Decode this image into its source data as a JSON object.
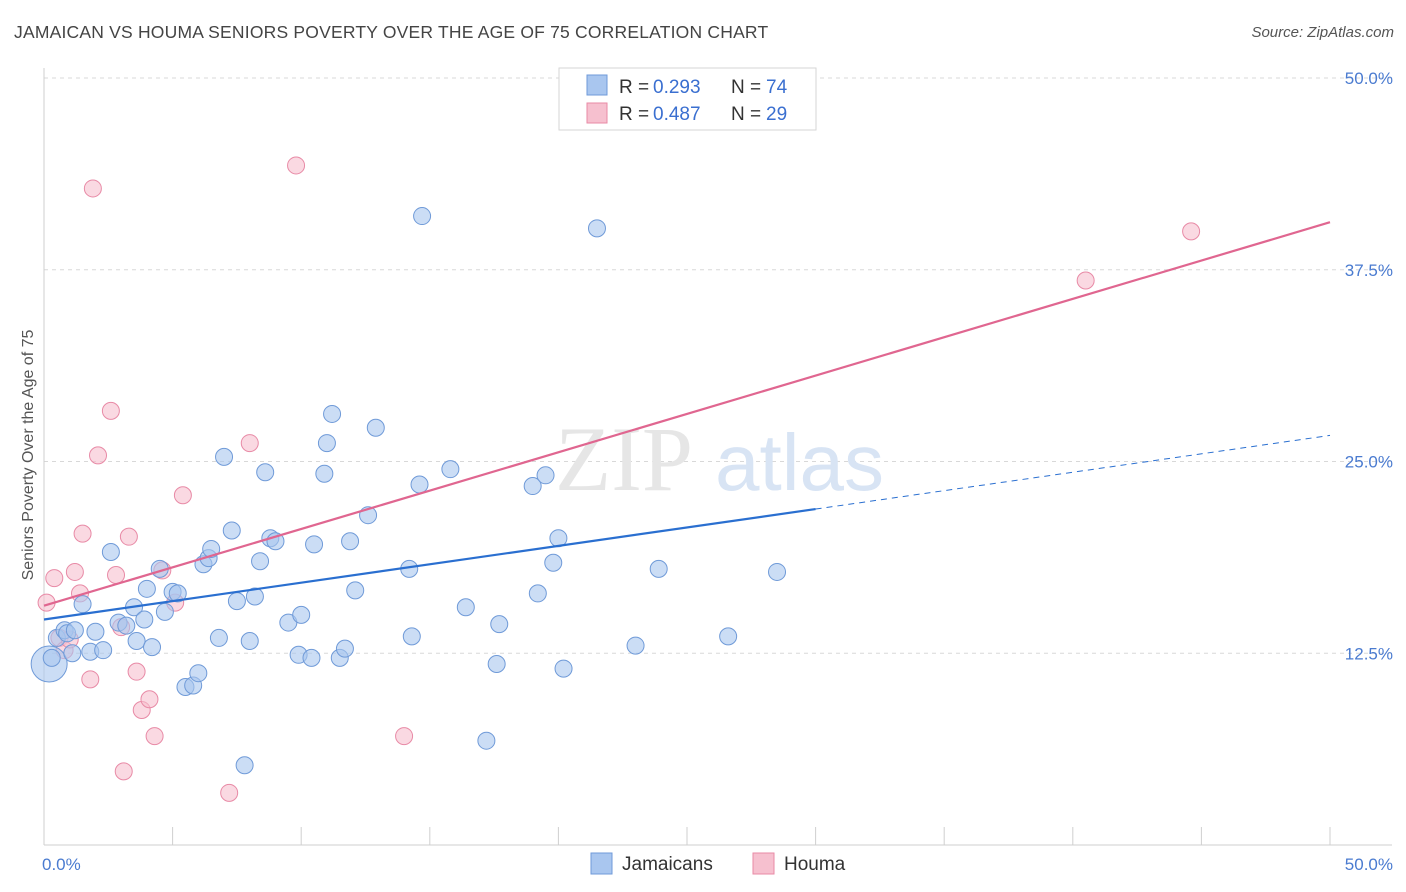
{
  "title": "JAMAICAN VS HOUMA SENIORS POVERTY OVER THE AGE OF 75 CORRELATION CHART",
  "source": "Source: ZipAtlas.com",
  "watermark": {
    "zip": "ZIP",
    "atlas": "atlas"
  },
  "colors": {
    "blue_fill": "#a9c6ef",
    "blue_stroke": "#6f9ad8",
    "blue_line": "#2a6fd0",
    "pink_fill": "#f6c0cf",
    "pink_stroke": "#e88aa6",
    "pink_line": "#e06690",
    "grid": "#d8d8d8",
    "tick_text": "#4a7bd0"
  },
  "legend": {
    "rows": [
      {
        "r_label": "R =",
        "r_value": "0.293",
        "n_label": "N =",
        "n_value": "74",
        "series": "blue"
      },
      {
        "r_label": "R =",
        "r_value": "0.487",
        "n_label": "N =",
        "n_value": "29",
        "series": "pink"
      }
    ]
  },
  "chart_data": {
    "type": "scatter",
    "title": "JAMAICAN VS HOUMA SENIORS POVERTY OVER THE AGE OF 75 CORRELATION CHART",
    "xlabel": "",
    "ylabel": "Seniors Poverty Over the Age of 75",
    "xlim": [
      0,
      50
    ],
    "ylim": [
      0,
      50
    ],
    "x_tick_labels": [
      "0.0%",
      "50.0%"
    ],
    "y_ticks": [
      12.5,
      25.0,
      37.5,
      50.0
    ],
    "y_tick_labels": [
      "12.5%",
      "25.0%",
      "37.5%",
      "50.0%"
    ],
    "grid": true,
    "legend_position": "top-center",
    "series": [
      {
        "name": "Jamaicans",
        "color": "#a9c6ef",
        "trend": {
          "x": [
            0,
            30
          ],
          "y": [
            14.7,
            21.9
          ],
          "dashed_to": [
            50,
            26.7
          ]
        },
        "points": [
          [
            0.2,
            11.8
          ],
          [
            0.3,
            12.2
          ],
          [
            0.5,
            13.5
          ],
          [
            0.8,
            14.0
          ],
          [
            0.9,
            13.8
          ],
          [
            1.1,
            12.5
          ],
          [
            1.2,
            14.0
          ],
          [
            1.5,
            15.7
          ],
          [
            1.8,
            12.6
          ],
          [
            2.0,
            13.9
          ],
          [
            2.3,
            12.7
          ],
          [
            2.6,
            19.1
          ],
          [
            2.9,
            14.5
          ],
          [
            3.2,
            14.3
          ],
          [
            3.5,
            15.5
          ],
          [
            3.6,
            13.3
          ],
          [
            3.9,
            14.7
          ],
          [
            4.0,
            16.7
          ],
          [
            4.2,
            12.9
          ],
          [
            4.5,
            18.0
          ],
          [
            4.7,
            15.2
          ],
          [
            5.0,
            16.5
          ],
          [
            5.2,
            16.4
          ],
          [
            5.5,
            10.3
          ],
          [
            5.8,
            10.4
          ],
          [
            6.0,
            11.2
          ],
          [
            6.2,
            18.3
          ],
          [
            6.4,
            18.7
          ],
          [
            6.5,
            19.3
          ],
          [
            6.8,
            13.5
          ],
          [
            7.0,
            25.3
          ],
          [
            7.3,
            20.5
          ],
          [
            7.5,
            15.9
          ],
          [
            7.8,
            5.2
          ],
          [
            8.0,
            13.3
          ],
          [
            8.2,
            16.2
          ],
          [
            8.4,
            18.5
          ],
          [
            8.6,
            24.3
          ],
          [
            8.8,
            20.0
          ],
          [
            9.0,
            19.8
          ],
          [
            9.5,
            14.5
          ],
          [
            9.9,
            12.4
          ],
          [
            10.0,
            15.0
          ],
          [
            10.4,
            12.2
          ],
          [
            10.5,
            19.6
          ],
          [
            10.9,
            24.2
          ],
          [
            11.0,
            26.2
          ],
          [
            11.2,
            28.1
          ],
          [
            11.5,
            12.2
          ],
          [
            11.7,
            12.8
          ],
          [
            11.9,
            19.8
          ],
          [
            12.1,
            16.6
          ],
          [
            12.6,
            21.5
          ],
          [
            12.9,
            27.2
          ],
          [
            14.3,
            13.6
          ],
          [
            14.2,
            18.0
          ],
          [
            14.6,
            23.5
          ],
          [
            14.7,
            41.0
          ],
          [
            15.8,
            24.5
          ],
          [
            16.4,
            15.5
          ],
          [
            17.2,
            6.8
          ],
          [
            17.6,
            11.8
          ],
          [
            17.7,
            14.4
          ],
          [
            19.0,
            23.4
          ],
          [
            19.2,
            16.4
          ],
          [
            19.5,
            24.1
          ],
          [
            19.8,
            18.4
          ],
          [
            20.0,
            20.0
          ],
          [
            20.2,
            11.5
          ],
          [
            21.5,
            40.2
          ],
          [
            23.0,
            13.0
          ],
          [
            23.9,
            18.0
          ],
          [
            26.6,
            13.6
          ],
          [
            28.5,
            17.8
          ]
        ]
      },
      {
        "name": "Houma",
        "color": "#f6c0cf",
        "trend": {
          "x": [
            0,
            50
          ],
          "y": [
            15.6,
            40.6
          ]
        },
        "points": [
          [
            0.1,
            15.8
          ],
          [
            0.4,
            17.4
          ],
          [
            0.6,
            13.5
          ],
          [
            0.8,
            12.7
          ],
          [
            1.0,
            13.4
          ],
          [
            1.2,
            17.8
          ],
          [
            1.4,
            16.4
          ],
          [
            1.5,
            20.3
          ],
          [
            1.8,
            10.8
          ],
          [
            1.9,
            42.8
          ],
          [
            2.1,
            25.4
          ],
          [
            2.6,
            28.3
          ],
          [
            2.8,
            17.6
          ],
          [
            3.0,
            14.2
          ],
          [
            3.1,
            4.8
          ],
          [
            3.3,
            20.1
          ],
          [
            3.6,
            11.3
          ],
          [
            3.8,
            8.8
          ],
          [
            4.1,
            9.5
          ],
          [
            4.3,
            7.1
          ],
          [
            4.6,
            17.9
          ],
          [
            5.1,
            15.8
          ],
          [
            5.4,
            22.8
          ],
          [
            7.2,
            3.4
          ],
          [
            8.0,
            26.2
          ],
          [
            9.8,
            44.3
          ],
          [
            14.0,
            7.1
          ],
          [
            40.5,
            36.8
          ],
          [
            44.6,
            40.0
          ]
        ]
      }
    ]
  },
  "bottom_legend": {
    "items": [
      {
        "label": "Jamaicans"
      },
      {
        "label": "Houma"
      }
    ]
  }
}
